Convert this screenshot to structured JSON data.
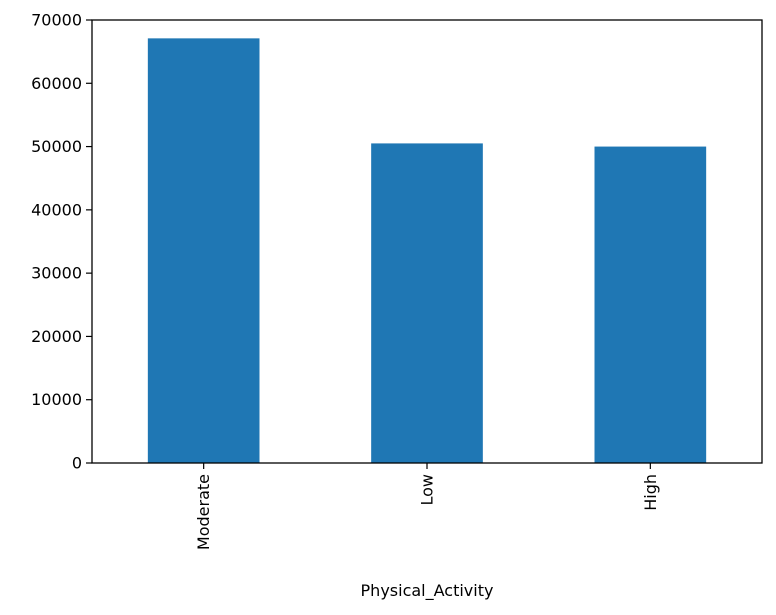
{
  "chart_data": {
    "type": "bar",
    "title": "",
    "xlabel": "Physical_Activity",
    "ylabel": "",
    "categories": [
      "Moderate",
      "Low",
      "High"
    ],
    "values": [
      67100,
      50500,
      50000
    ],
    "ylim": [
      0,
      70000
    ],
    "yticks": [
      0,
      10000,
      20000,
      30000,
      40000,
      50000,
      60000,
      70000
    ],
    "bar_color": "#1f77b4",
    "grid": false,
    "legend": "none",
    "x_tick_rotation": "vertical"
  }
}
